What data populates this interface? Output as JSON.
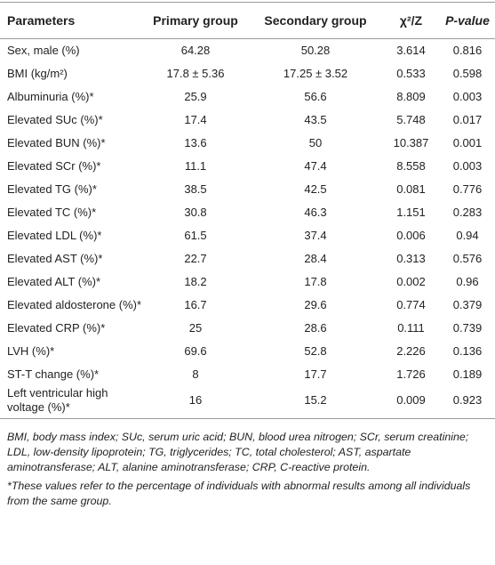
{
  "table": {
    "header": [
      "Parameters",
      "Primary group",
      "Secondary group",
      "χ²/Z",
      "P-value"
    ],
    "rows": [
      [
        "Sex, male (%)",
        "64.28",
        "50.28",
        "3.614",
        "0.816"
      ],
      [
        "BMI (kg/m²)",
        "17.8 ± 5.36",
        "17.25 ± 3.52",
        "0.533",
        "0.598"
      ],
      [
        "Albuminuria (%)*",
        "25.9",
        "56.6",
        "8.809",
        "0.003"
      ],
      [
        "Elevated SUc (%)*",
        "17.4",
        "43.5",
        "5.748",
        "0.017"
      ],
      [
        "Elevated BUN (%)*",
        "13.6",
        "50",
        "10.387",
        "0.001"
      ],
      [
        "Elevated SCr (%)*",
        "11.1",
        "47.4",
        "8.558",
        "0.003"
      ],
      [
        "Elevated TG (%)*",
        "38.5",
        "42.5",
        "0.081",
        "0.776"
      ],
      [
        "Elevated TC (%)*",
        "30.8",
        "46.3",
        "1.151",
        "0.283"
      ],
      [
        "Elevated LDL (%)*",
        "61.5",
        "37.4",
        "0.006",
        "0.94"
      ],
      [
        "Elevated AST (%)*",
        "22.7",
        "28.4",
        "0.313",
        "0.576"
      ],
      [
        "Elevated ALT (%)*",
        "18.2",
        "17.8",
        "0.002",
        "0.96"
      ],
      [
        "Elevated aldosterone (%)*",
        "16.7",
        "29.6",
        "0.774",
        "0.379"
      ],
      [
        "Elevated CRP (%)*",
        "25",
        "28.6",
        "0.111",
        "0.739"
      ],
      [
        "LVH (%)*",
        "69.6",
        "52.8",
        "2.226",
        "0.136"
      ],
      [
        "ST-T change (%)*",
        "8",
        "17.7",
        "1.726",
        "0.189"
      ],
      [
        "Left ventricular high voltage (%)*",
        "16",
        "15.2",
        "0.009",
        "0.923"
      ]
    ]
  },
  "footnotes": [
    "BMI, body mass index; SUc, serum uric acid; BUN, blood urea nitrogen; SCr, serum creatinine; LDL, low-density lipoprotein; TG, triglycerides; TC, total cholesterol; AST, aspartate aminotransferase; ALT, alanine aminotransferase; CRP, C-reactive protein.",
    "*These values refer to the percentage of individuals with abnormal results among all individuals from the same group."
  ]
}
